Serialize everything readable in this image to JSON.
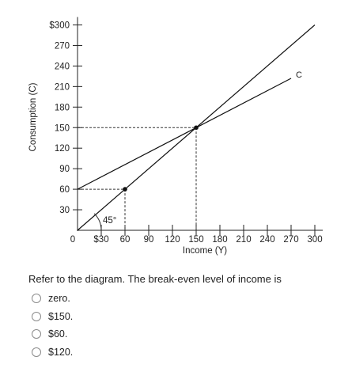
{
  "chart_data": {
    "type": "line",
    "xlabel": "Income (Y)",
    "ylabel": "Consumption (C)",
    "xlim": [
      0,
      300
    ],
    "ylim": [
      0,
      300
    ],
    "x_ticks": [
      0,
      30,
      60,
      90,
      120,
      150,
      180,
      210,
      240,
      270,
      300
    ],
    "x_tick_labels": [
      "0",
      "$30",
      "60",
      "90",
      "120",
      "150",
      "180",
      "210",
      "240",
      "270",
      "300"
    ],
    "y_ticks": [
      30,
      60,
      90,
      120,
      150,
      180,
      210,
      240,
      270,
      300
    ],
    "y_tick_labels": [
      "30",
      "60",
      "90",
      "120",
      "150",
      "180",
      "210",
      "240",
      "270",
      "$300"
    ],
    "series": [
      {
        "name": "C",
        "x": [
          0,
          150,
          270
        ],
        "y": [
          60,
          150,
          222
        ]
      },
      {
        "name": "",
        "x": [
          0,
          300
        ],
        "y": [
          0,
          300
        ]
      }
    ],
    "points": [
      {
        "x": 60,
        "y": 60
      },
      {
        "x": 150,
        "y": 150
      }
    ],
    "annotations": [
      {
        "text": "45°",
        "x": 30,
        "y": 15
      },
      {
        "text": "C",
        "x": 276,
        "y": 228
      }
    ],
    "grid": false
  },
  "question": {
    "text": "Refer to the diagram. The break-even level of income is",
    "options": [
      "zero.",
      "$150.",
      "$60.",
      "$120."
    ]
  }
}
